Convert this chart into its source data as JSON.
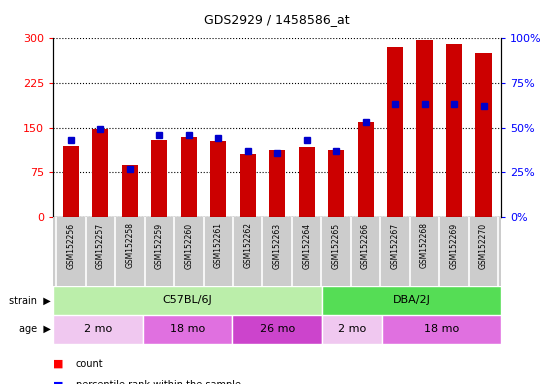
{
  "title": "GDS2929 / 1458586_at",
  "samples": [
    "GSM152256",
    "GSM152257",
    "GSM152258",
    "GSM152259",
    "GSM152260",
    "GSM152261",
    "GSM152262",
    "GSM152263",
    "GSM152264",
    "GSM152265",
    "GSM152266",
    "GSM152267",
    "GSM152268",
    "GSM152269",
    "GSM152270"
  ],
  "counts": [
    120,
    148,
    88,
    130,
    135,
    128,
    105,
    112,
    118,
    112,
    160,
    285,
    298,
    290,
    275
  ],
  "percentile_ranks": [
    43,
    49,
    27,
    46,
    46,
    44,
    37,
    36,
    43,
    37,
    53,
    63,
    63,
    63,
    62
  ],
  "ylim_left": [
    0,
    300
  ],
  "ylim_right": [
    0,
    100
  ],
  "yticks_left": [
    0,
    75,
    150,
    225,
    300
  ],
  "yticks_right": [
    0,
    25,
    50,
    75,
    100
  ],
  "bar_color": "#cc0000",
  "dot_color": "#0000cc",
  "strain_groups": [
    {
      "label": "C57BL/6J",
      "start": 0,
      "end": 9,
      "color": "#bbeeaa"
    },
    {
      "label": "DBA/2J",
      "start": 9,
      "end": 15,
      "color": "#55dd55"
    }
  ],
  "age_groups": [
    {
      "label": "2 mo",
      "start": 0,
      "end": 3,
      "color": "#f0c8f0"
    },
    {
      "label": "18 mo",
      "start": 3,
      "end": 6,
      "color": "#e070e0"
    },
    {
      "label": "26 mo",
      "start": 6,
      "end": 9,
      "color": "#cc44cc"
    },
    {
      "label": "2 mo",
      "start": 9,
      "end": 11,
      "color": "#f0c8f0"
    },
    {
      "label": "18 mo",
      "start": 11,
      "end": 15,
      "color": "#e070e0"
    }
  ],
  "label_bg_color": "#cccccc",
  "background_color": "#ffffff",
  "bar_width": 0.55,
  "figsize": [
    5.6,
    3.84
  ],
  "dpi": 100
}
